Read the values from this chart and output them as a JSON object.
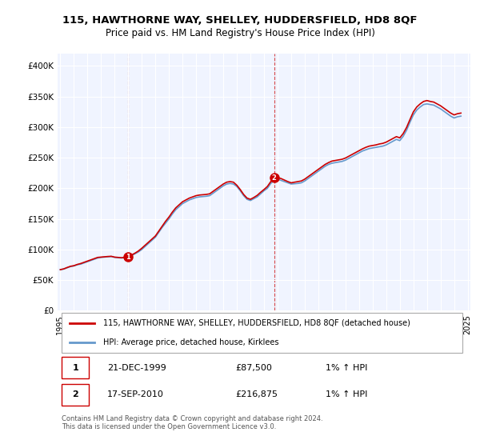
{
  "title": "115, HAWTHORNE WAY, SHELLEY, HUDDERSFIELD, HD8 8QF",
  "subtitle": "Price paid vs. HM Land Registry's House Price Index (HPI)",
  "legend_line1": "115, HAWTHORNE WAY, SHELLEY, HUDDERSFIELD, HD8 8QF (detached house)",
  "legend_line2": "HPI: Average price, detached house, Kirklees",
  "footnote": "Contains HM Land Registry data © Crown copyright and database right 2024.\nThis data is licensed under the Open Government Licence v3.0.",
  "transaction1_label": "1",
  "transaction1_date": "21-DEC-1999",
  "transaction1_price": "£87,500",
  "transaction1_hpi": "1% ↑ HPI",
  "transaction2_label": "2",
  "transaction2_date": "17-SEP-2010",
  "transaction2_price": "£216,875",
  "transaction2_hpi": "1% ↑ HPI",
  "ylabel_ticks": [
    "£0",
    "£50K",
    "£100K",
    "£150K",
    "£200K",
    "£250K",
    "£300K",
    "£350K",
    "£400K"
  ],
  "ylim": [
    0,
    420000
  ],
  "house_color": "#cc0000",
  "hpi_color": "#6699cc",
  "marker_color": "#cc0000",
  "dashed_color": "#cc0000",
  "background_chart": "#f0f4ff",
  "background_fig": "#ffffff",
  "transaction1_x": 2000.0,
  "transaction1_y": 87500,
  "transaction2_x": 2010.75,
  "transaction2_y": 216875,
  "hpi_years": [
    1995,
    1995.25,
    1995.5,
    1995.75,
    1996,
    1996.25,
    1996.5,
    1996.75,
    1997,
    1997.25,
    1997.5,
    1997.75,
    1998,
    1998.25,
    1998.5,
    1998.75,
    1999,
    1999.25,
    1999.5,
    1999.75,
    2000,
    2000.25,
    2000.5,
    2000.75,
    2001,
    2001.25,
    2001.5,
    2001.75,
    2002,
    2002.25,
    2002.5,
    2002.75,
    2003,
    2003.25,
    2003.5,
    2003.75,
    2004,
    2004.25,
    2004.5,
    2004.75,
    2005,
    2005.25,
    2005.5,
    2005.75,
    2006,
    2006.25,
    2006.5,
    2006.75,
    2007,
    2007.25,
    2007.5,
    2007.75,
    2008,
    2008.25,
    2008.5,
    2008.75,
    2009,
    2009.25,
    2009.5,
    2009.75,
    2010,
    2010.25,
    2010.5,
    2010.75,
    2011,
    2011.25,
    2011.5,
    2011.75,
    2012,
    2012.25,
    2012.5,
    2012.75,
    2013,
    2013.25,
    2013.5,
    2013.75,
    2014,
    2014.25,
    2014.5,
    2014.75,
    2015,
    2015.25,
    2015.5,
    2015.75,
    2016,
    2016.25,
    2016.5,
    2016.75,
    2017,
    2017.25,
    2017.5,
    2017.75,
    2018,
    2018.25,
    2018.5,
    2018.75,
    2019,
    2019.25,
    2019.5,
    2019.75,
    2020,
    2020.25,
    2020.5,
    2020.75,
    2021,
    2021.25,
    2021.5,
    2021.75,
    2022,
    2022.25,
    2022.5,
    2022.75,
    2023,
    2023.25,
    2023.5,
    2023.75,
    2024,
    2024.25,
    2024.5
  ],
  "hpi_values": [
    67000,
    68000,
    70000,
    72000,
    73000,
    75000,
    76000,
    78000,
    80000,
    82000,
    84000,
    86000,
    87000,
    87500,
    88000,
    88500,
    87000,
    86500,
    86000,
    86500,
    87500,
    90000,
    93000,
    96000,
    100000,
    105000,
    110000,
    115000,
    120000,
    128000,
    136000,
    143000,
    150000,
    158000,
    165000,
    170000,
    175000,
    178000,
    181000,
    183000,
    185000,
    186000,
    186500,
    187000,
    188000,
    192000,
    196000,
    200000,
    204000,
    207000,
    208000,
    207000,
    203000,
    196000,
    188000,
    182000,
    180000,
    183000,
    186000,
    191000,
    196000,
    200000,
    208000,
    213000,
    215000,
    213000,
    211000,
    209000,
    207000,
    207500,
    208000,
    209000,
    212000,
    216000,
    220000,
    224000,
    228000,
    232000,
    236000,
    239000,
    241000,
    242000,
    243000,
    244000,
    246000,
    249000,
    252000,
    255000,
    258000,
    261000,
    263000,
    265000,
    266000,
    267000,
    268000,
    269000,
    271000,
    274000,
    277000,
    280000,
    278000,
    285000,
    295000,
    308000,
    320000,
    328000,
    333000,
    337000,
    338000,
    337000,
    336000,
    333000,
    330000,
    326000,
    322000,
    318000,
    315000,
    317000,
    318000
  ],
  "house_years": [
    1995,
    1995.25,
    1995.5,
    1995.75,
    1996,
    1996.25,
    1996.5,
    1996.75,
    1997,
    1997.25,
    1997.5,
    1997.75,
    1998,
    1998.25,
    1998.5,
    1998.75,
    1999,
    1999.25,
    1999.5,
    1999.75,
    2000,
    2000.25,
    2000.5,
    2000.75,
    2001,
    2001.25,
    2001.5,
    2001.75,
    2002,
    2002.25,
    2002.5,
    2002.75,
    2003,
    2003.25,
    2003.5,
    2003.75,
    2004,
    2004.25,
    2004.5,
    2004.75,
    2005,
    2005.25,
    2005.5,
    2005.75,
    2006,
    2006.25,
    2006.5,
    2006.75,
    2007,
    2007.25,
    2007.5,
    2007.75,
    2008,
    2008.25,
    2008.5,
    2008.75,
    2009,
    2009.25,
    2009.5,
    2009.75,
    2010,
    2010.25,
    2010.5,
    2010.75,
    2011,
    2011.25,
    2011.5,
    2011.75,
    2012,
    2012.25,
    2012.5,
    2012.75,
    2013,
    2013.25,
    2013.5,
    2013.75,
    2014,
    2014.25,
    2014.5,
    2014.75,
    2015,
    2015.25,
    2015.5,
    2015.75,
    2016,
    2016.25,
    2016.5,
    2016.75,
    2017,
    2017.25,
    2017.5,
    2017.75,
    2018,
    2018.25,
    2018.5,
    2018.75,
    2019,
    2019.25,
    2019.5,
    2019.75,
    2020,
    2020.25,
    2020.5,
    2020.75,
    2021,
    2021.25,
    2021.5,
    2021.75,
    2022,
    2022.25,
    2022.5,
    2022.75,
    2023,
    2023.25,
    2023.5,
    2023.75,
    2024,
    2024.25,
    2024.5
  ],
  "house_values": [
    67000,
    68200,
    70500,
    72500,
    73500,
    75500,
    77000,
    79000,
    81000,
    83000,
    85000,
    87000,
    87500,
    88000,
    88500,
    88800,
    87500,
    87000,
    86500,
    87000,
    87500,
    91000,
    94000,
    97500,
    102000,
    107000,
    112000,
    117000,
    122000,
    130000,
    138000,
    146000,
    153000,
    161000,
    168000,
    173000,
    178000,
    181000,
    184000,
    186000,
    188000,
    189000,
    189500,
    190000,
    191000,
    195000,
    199000,
    203000,
    207000,
    210000,
    211000,
    210000,
    205000,
    198000,
    190000,
    184000,
    182000,
    185000,
    188500,
    193500,
    198000,
    203000,
    211000,
    216000,
    217500,
    216000,
    213500,
    211000,
    209000,
    210000,
    211000,
    212000,
    215000,
    219000,
    223000,
    227000,
    231000,
    235000,
    239000,
    242000,
    244500,
    245500,
    246500,
    247500,
    249500,
    252500,
    255500,
    258500,
    261500,
    264500,
    267000,
    269000,
    270000,
    271000,
    272500,
    273500,
    275500,
    278500,
    281500,
    284500,
    282500,
    289500,
    299500,
    312500,
    325000,
    333000,
    338000,
    342000,
    343500,
    342000,
    341000,
    338000,
    335000,
    331000,
    327000,
    323000,
    320000,
    322000,
    323000
  ],
  "xtick_years": [
    1995,
    1996,
    1997,
    1998,
    1999,
    2000,
    2001,
    2002,
    2003,
    2004,
    2005,
    2006,
    2007,
    2008,
    2009,
    2010,
    2011,
    2012,
    2013,
    2014,
    2015,
    2016,
    2017,
    2018,
    2019,
    2020,
    2021,
    2022,
    2023,
    2024,
    2025
  ]
}
